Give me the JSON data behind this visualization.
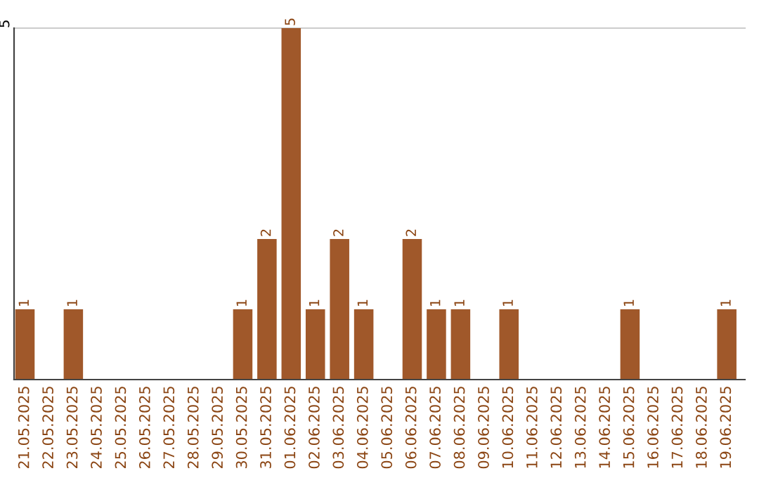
{
  "chart_data": {
    "type": "bar",
    "categories": [
      "21.05.2025",
      "22.05.2025",
      "23.05.2025",
      "24.05.2025",
      "25.05.2025",
      "26.05.2025",
      "27.05.2025",
      "28.05.2025",
      "29.05.2025",
      "30.05.2025",
      "31.05.2025",
      "01.06.2025",
      "02.06.2025",
      "03.06.2025",
      "04.06.2025",
      "05.06.2025",
      "06.06.2025",
      "07.06.2025",
      "08.06.2025",
      "09.06.2025",
      "10.06.2025",
      "11.06.2025",
      "12.06.2025",
      "13.06.2025",
      "14.06.2025",
      "15.06.2025",
      "16.06.2025",
      "17.06.2025",
      "18.06.2025",
      "19.06.2025"
    ],
    "values": [
      1,
      0,
      1,
      0,
      0,
      0,
      0,
      0,
      0,
      1,
      2,
      5,
      1,
      2,
      1,
      0,
      2,
      1,
      1,
      0,
      1,
      0,
      0,
      0,
      0,
      1,
      0,
      0,
      0,
      1
    ],
    "value_labels": [
      "1",
      null,
      "1",
      null,
      null,
      null,
      null,
      null,
      null,
      "1",
      "2",
      "5",
      "1",
      "2",
      "1",
      null,
      "2",
      "1",
      "1",
      null,
      "1",
      null,
      null,
      null,
      null,
      "1",
      null,
      null,
      null,
      "1"
    ],
    "color": "#a0582a",
    "ylim": [
      0,
      5
    ],
    "yticks": [
      5
    ],
    "ref_lines": [
      {
        "axis": "y",
        "value": 5,
        "color": "#cccccc"
      }
    ]
  }
}
